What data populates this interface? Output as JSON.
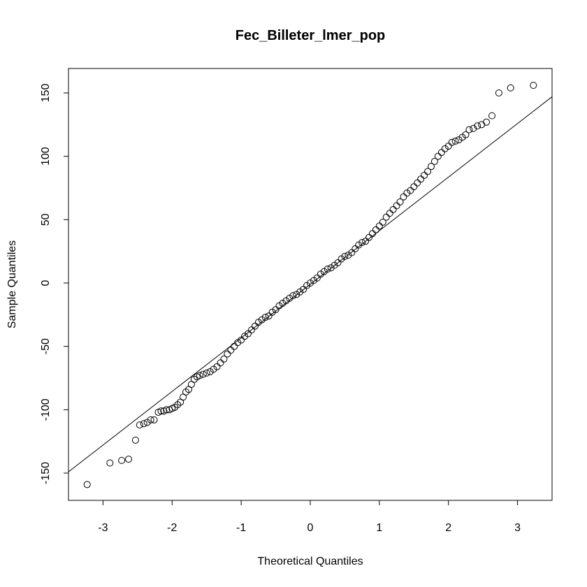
{
  "chart_data": {
    "type": "scatter",
    "title": "Fec_Billeter_lmer_pop",
    "xlabel": "Theoretical Quantiles",
    "ylabel": "Sample Quantiles",
    "x": [
      -3.23,
      -2.9,
      -2.73,
      -2.63,
      -2.53,
      -2.47,
      -2.41,
      -2.36,
      -2.31,
      -2.26,
      -2.2,
      -2.16,
      -2.12,
      -2.08,
      -2.04,
      -2.0,
      -1.96,
      -1.92,
      -1.88,
      -1.84,
      -1.8,
      -1.76,
      -1.72,
      -1.68,
      -1.64,
      -1.6,
      -1.55,
      -1.5,
      -1.45,
      -1.4,
      -1.35,
      -1.3,
      -1.25,
      -1.2,
      -1.15,
      -1.1,
      -1.05,
      -1.0,
      -0.95,
      -0.9,
      -0.85,
      -0.8,
      -0.75,
      -0.7,
      -0.65,
      -0.6,
      -0.55,
      -0.5,
      -0.45,
      -0.4,
      -0.35,
      -0.3,
      -0.25,
      -0.2,
      -0.15,
      -0.1,
      -0.05,
      0,
      0.05,
      0.1,
      0.15,
      0.2,
      0.25,
      0.3,
      0.35,
      0.4,
      0.45,
      0.5,
      0.55,
      0.6,
      0.65,
      0.7,
      0.75,
      0.8,
      0.85,
      0.9,
      0.95,
      1.0,
      1.05,
      1.1,
      1.15,
      1.2,
      1.25,
      1.3,
      1.35,
      1.4,
      1.45,
      1.5,
      1.55,
      1.6,
      1.65,
      1.7,
      1.75,
      1.8,
      1.85,
      1.9,
      1.95,
      2.0,
      2.05,
      2.1,
      2.15,
      2.2,
      2.25,
      2.3,
      2.36,
      2.42,
      2.48,
      2.55,
      2.63,
      2.73,
      2.9,
      3.23
    ],
    "y": [
      -159,
      -142,
      -140,
      -139,
      -124,
      -112,
      -111,
      -110,
      -108,
      -108,
      -102,
      -101,
      -101,
      -100,
      -100,
      -99,
      -98,
      -96,
      -94,
      -90,
      -86,
      -84,
      -80,
      -76,
      -74,
      -73,
      -72,
      -71,
      -70,
      -68,
      -66,
      -63,
      -60,
      -56,
      -53,
      -50,
      -47,
      -45,
      -42,
      -40,
      -37,
      -34,
      -31,
      -29,
      -27,
      -26,
      -23,
      -21,
      -18,
      -16,
      -14,
      -12,
      -10,
      -9,
      -7,
      -5,
      -2,
      0,
      2,
      4,
      7,
      9,
      11,
      12,
      14,
      16,
      19,
      21,
      22,
      24,
      27,
      30,
      32,
      33,
      36,
      39,
      42,
      45,
      48,
      52,
      55,
      58,
      61,
      64,
      68,
      71,
      73,
      76,
      79,
      82,
      85,
      88,
      92,
      96,
      100,
      103,
      106,
      108,
      111,
      112,
      113,
      115,
      117,
      121,
      122,
      124,
      125,
      127,
      132,
      150,
      154,
      156
    ],
    "line": {
      "x": [
        -3.5,
        3.5
      ],
      "y": [
        -149,
        147
      ]
    },
    "xlim": [
      -3.5,
      3.5
    ],
    "ylim": [
      -171.5,
      169.3
    ],
    "xticks": [
      -3,
      -2,
      -1,
      0,
      1,
      2,
      3
    ],
    "yticks": [
      -150,
      -100,
      -50,
      0,
      50,
      100,
      150
    ]
  }
}
